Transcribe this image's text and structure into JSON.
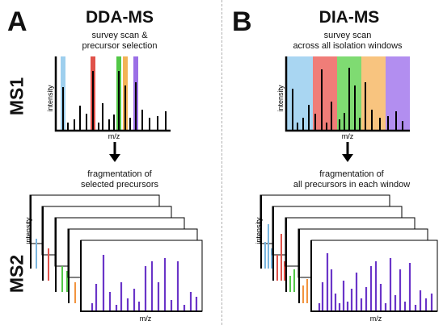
{
  "panels": {
    "a": {
      "letter": "A",
      "title": "DDA-MS",
      "ms1_caption_line1": "survey scan &",
      "ms1_caption_line2": "precursor selection",
      "ms2_caption_line1": "fragmentation of",
      "ms2_caption_line2": "selected precursors",
      "ylabel": "intensity",
      "xlabel": "m/z"
    },
    "b": {
      "letter": "B",
      "title": "DIA-MS",
      "ms1_caption_line1": "survey scan",
      "ms1_caption_line2": "across all isolation windows",
      "ms2_caption_line1": "fragmentation of",
      "ms2_caption_line2": "all precursors in each window",
      "ylabel": "intensity",
      "xlabel": "m/z"
    }
  },
  "row_labels": {
    "ms1": "MS1",
    "ms2": "MS2"
  },
  "colors": {
    "blue": "#9ecfee",
    "red": "#e0524a",
    "green": "#52c847",
    "orange": "#f2b356",
    "purple": "#9b6fe6",
    "dia_blue": "#a9d6f2",
    "dia_red": "#f07d78",
    "dia_green": "#7fdb72",
    "dia_orange": "#f8c47f",
    "dia_purple": "#b28ef0",
    "fragment_purple": "#6a35c8",
    "axis": "#000000"
  }
}
